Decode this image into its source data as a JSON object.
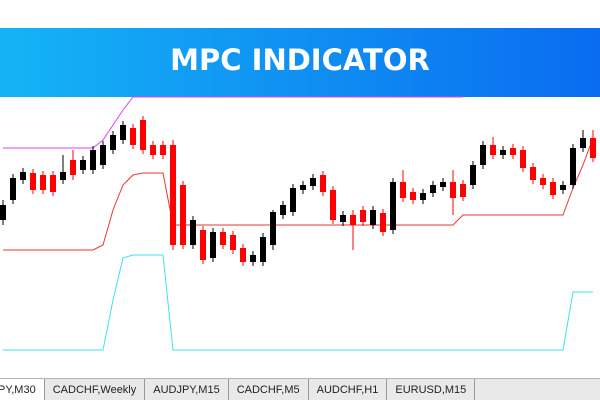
{
  "chart_data": {
    "type": "candlestick",
    "title": "MPC INDICATOR",
    "up_color": "#000000",
    "down_color": "#ff0000",
    "ylim": [
      0,
      278
    ],
    "open": [
      155,
      175,
      195,
      202,
      200,
      200,
      195,
      215,
      205,
      205,
      210,
      225,
      235,
      247,
      255,
      230,
      230,
      230,
      190,
      130,
      145,
      117,
      143,
      140,
      127,
      113,
      113,
      130,
      160,
      163,
      185,
      189,
      200,
      185,
      153,
      160,
      165,
      150,
      162,
      145,
      193,
      183,
      175,
      182,
      188,
      193,
      191,
      190,
      210,
      230,
      220,
      227,
      225,
      208,
      197,
      193,
      185,
      190,
      227,
      237
    ],
    "close": [
      170,
      197,
      203,
      185,
      185,
      183,
      203,
      200,
      215,
      225,
      230,
      240,
      250,
      230,
      225,
      220,
      220,
      130,
      130,
      155,
      115,
      143,
      130,
      125,
      113,
      120,
      138,
      163,
      170,
      187,
      190,
      197,
      183,
      155,
      160,
      150,
      153,
      165,
      143,
      193,
      177,
      175,
      182,
      190,
      193,
      177,
      178,
      210,
      230,
      220,
      225,
      220,
      207,
      195,
      190,
      180,
      190,
      227,
      237,
      217
    ],
    "high": [
      175,
      201,
      207,
      206,
      204,
      204,
      220,
      225,
      219,
      229,
      234,
      244,
      254,
      251,
      259,
      234,
      234,
      235,
      194,
      159,
      149,
      147,
      147,
      144,
      131,
      124,
      142,
      165,
      174,
      191,
      194,
      201,
      204,
      189,
      164,
      165,
      169,
      169,
      166,
      197,
      205,
      187,
      186,
      194,
      197,
      205,
      195,
      214,
      234,
      238,
      229,
      231,
      229,
      212,
      201,
      197,
      194,
      231,
      245,
      245
    ],
    "low": [
      150,
      171,
      191,
      181,
      181,
      179,
      191,
      195,
      201,
      201,
      206,
      221,
      231,
      226,
      221,
      216,
      216,
      125,
      126,
      126,
      111,
      113,
      126,
      121,
      109,
      109,
      109,
      125,
      156,
      159,
      181,
      185,
      179,
      151,
      149,
      125,
      149,
      146,
      139,
      141,
      173,
      171,
      171,
      178,
      184,
      160,
      174,
      186,
      206,
      216,
      216,
      216,
      203,
      191,
      186,
      176,
      181,
      186,
      223,
      213
    ],
    "series": [
      {
        "color": "#e040fb",
        "values": [
          227,
          227,
          227,
          227,
          227,
          227,
          227,
          227,
          227,
          227,
          235,
          250,
          265,
          278,
          278,
          278,
          278,
          278,
          278,
          278,
          278,
          278,
          278,
          278,
          278,
          278,
          278,
          278,
          278,
          278,
          278,
          278,
          278,
          278,
          278,
          278,
          278,
          278,
          278,
          278,
          278,
          278,
          278,
          278,
          278,
          278,
          278,
          null,
          null,
          null,
          null,
          null,
          null,
          null,
          null,
          null,
          null,
          null,
          null,
          null
        ]
      },
      {
        "color": "#e53935",
        "values": [
          125,
          125,
          125,
          125,
          125,
          125,
          125,
          125,
          125,
          125,
          130,
          165,
          190,
          200,
          202,
          202,
          202,
          150,
          150,
          150,
          150,
          150,
          150,
          150,
          150,
          150,
          150,
          150,
          150,
          150,
          150,
          150,
          150,
          150,
          150,
          150,
          150,
          150,
          150,
          150,
          150,
          150,
          150,
          150,
          150,
          150,
          160,
          160,
          160,
          160,
          160,
          160,
          160,
          160,
          160,
          160,
          160,
          187,
          210,
          237
        ]
      },
      {
        "color": "#40e0f0",
        "values": [
          25,
          25,
          25,
          25,
          25,
          25,
          25,
          25,
          25,
          25,
          25,
          75,
          117,
          120,
          120,
          120,
          120,
          25,
          25,
          25,
          25,
          25,
          25,
          25,
          25,
          25,
          25,
          25,
          25,
          25,
          25,
          25,
          25,
          25,
          25,
          25,
          25,
          25,
          25,
          25,
          25,
          25,
          25,
          25,
          25,
          25,
          25,
          25,
          25,
          25,
          25,
          25,
          25,
          25,
          25,
          25,
          25,
          83,
          83,
          83
        ]
      }
    ]
  },
  "tabs": [
    "PY,M30",
    "CADCHF,Weekly",
    "AUDJPY,M15",
    "CADCHF,M5",
    "AUDCHF,H1",
    "EURUSD,M15"
  ]
}
